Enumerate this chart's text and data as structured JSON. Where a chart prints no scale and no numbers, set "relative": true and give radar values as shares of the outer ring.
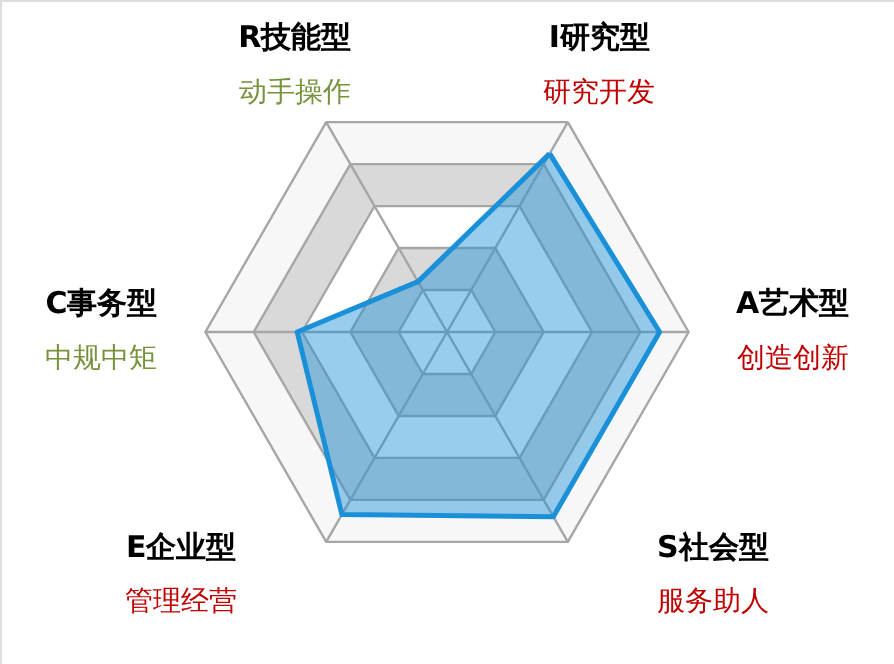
{
  "chart_data": {
    "type": "radar",
    "relative": true,
    "grid": true,
    "categories": [
      "I研究型",
      "A艺术型",
      "S社会型",
      "E企业型",
      "C事务型",
      "R技能型"
    ],
    "annotations": [
      "研究开发",
      "创造创新",
      "服务助人",
      "管理经营",
      "中规中矩",
      "动手操作"
    ],
    "series": [
      {
        "color": "#1a90d8",
        "values": [
          0.85,
          0.88,
          0.88,
          0.87,
          0.62,
          0.24
        ]
      }
    ]
  }
}
